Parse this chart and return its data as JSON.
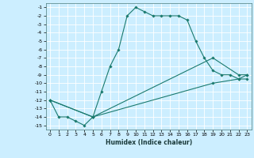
{
  "xlabel": "Humidex (Indice chaleur)",
  "bg_color": "#cceeff",
  "grid_color": "#ffffff",
  "line_color": "#1a7a6e",
  "xlim": [
    -0.5,
    23.5
  ],
  "ylim": [
    -15.5,
    -0.5
  ],
  "xticks": [
    0,
    1,
    2,
    3,
    4,
    5,
    6,
    7,
    8,
    9,
    10,
    11,
    12,
    13,
    14,
    15,
    16,
    17,
    18,
    19,
    20,
    21,
    22,
    23
  ],
  "yticks": [
    -1,
    -2,
    -3,
    -4,
    -5,
    -6,
    -7,
    -8,
    -9,
    -10,
    -11,
    -12,
    -13,
    -14,
    -15
  ],
  "line1_x": [
    0,
    1,
    2,
    3,
    4,
    5,
    6,
    7,
    8,
    9,
    10,
    11,
    12,
    13,
    14,
    15,
    16,
    17,
    18,
    19,
    20,
    21,
    22,
    23
  ],
  "line1_y": [
    -12,
    -14,
    -14,
    -14.5,
    -15,
    -14,
    -11,
    -8,
    -6,
    -2,
    -1,
    -1.5,
    -2,
    -2,
    -2,
    -2,
    -2.5,
    -5,
    -7,
    -8.5,
    -9,
    -9,
    -9.5,
    -9
  ],
  "line2_x": [
    0,
    5,
    19,
    22,
    23
  ],
  "line2_y": [
    -12,
    -14,
    -7,
    -9,
    -9
  ],
  "line3_x": [
    0,
    5,
    19,
    22,
    23
  ],
  "line3_y": [
    -12,
    -14,
    -10,
    -9.5,
    -9.5
  ]
}
